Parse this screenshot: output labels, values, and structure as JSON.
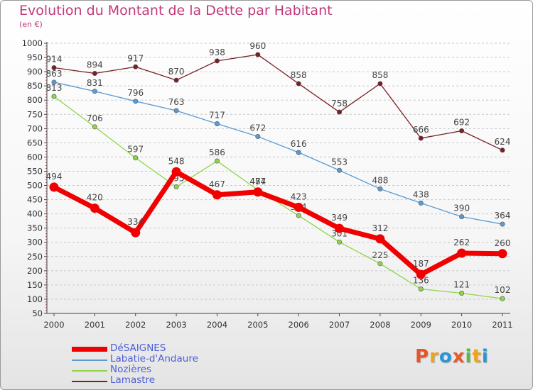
{
  "title": "Evolution du Montant de la Dette par Habitant",
  "subtitle": "(en €)",
  "logo": {
    "text": "Proxiti",
    "colors": [
      "#e8542a",
      "#f0a21a",
      "#2a95d6",
      "#e85a2a",
      "#5ab84a",
      "#f0a21a",
      "#2a95d6"
    ]
  },
  "chart_data": {
    "type": "line",
    "x": [
      "2000",
      "2001",
      "2002",
      "2003",
      "2004",
      "2005",
      "2006",
      "2007",
      "2008",
      "2009",
      "2010",
      "2011"
    ],
    "ylim": [
      50,
      1000
    ],
    "yticks": [
      50,
      100,
      150,
      200,
      250,
      300,
      350,
      400,
      450,
      500,
      550,
      600,
      650,
      700,
      750,
      800,
      850,
      900,
      950,
      1000
    ],
    "grid": "horizontal dashed",
    "legend_placement": "bottom-left",
    "series": [
      {
        "name": "Lamastre",
        "color": "#7a1f24",
        "values": [
          914,
          894,
          917,
          870,
          938,
          960,
          858,
          758,
          858,
          666,
          692,
          624
        ]
      },
      {
        "name": "Labatie-d'Andaure",
        "color": "#5b9bd3",
        "values": [
          863,
          831,
          796,
          763,
          717,
          672,
          616,
          553,
          488,
          438,
          390,
          364
        ]
      },
      {
        "name": "Nozières",
        "color": "#8fd44a",
        "values": [
          813,
          706,
          597,
          495,
          586,
          484,
          394,
          301,
          225,
          136,
          121,
          102
        ]
      },
      {
        "name": "DéSAIGNES",
        "color": "#f00000",
        "values": [
          494,
          420,
          334,
          548,
          467,
          477,
          423,
          349,
          312,
          187,
          262,
          260
        ]
      }
    ]
  }
}
